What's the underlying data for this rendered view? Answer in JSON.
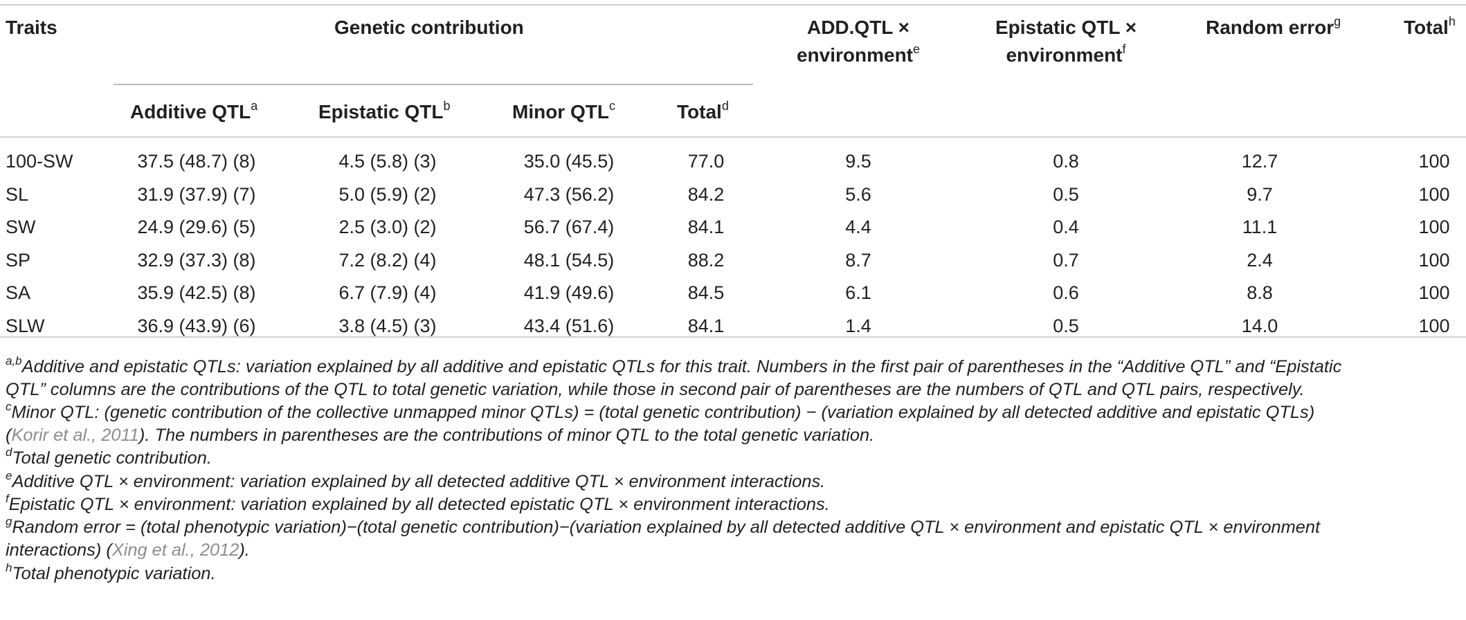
{
  "table": {
    "header": {
      "traits": "Traits",
      "genetic_contribution": "Genetic contribution",
      "additive_qtl": "Additive QTL",
      "additive_qtl_mark": "a",
      "epistatic_qtl": "Epistatic QTL",
      "epistatic_qtl_mark": "b",
      "minor_qtl": "Minor QTL",
      "minor_qtl_mark": "c",
      "total_gc": "Total",
      "total_gc_mark": "d",
      "add_env_line1": "ADD.QTL ×",
      "add_env_line2": "environment",
      "add_env_mark": "e",
      "epi_env_line1": "Epistatic QTL ×",
      "epi_env_line2": "environment",
      "epi_env_mark": "f",
      "random_error": "Random error",
      "random_error_mark": "g",
      "total": "Total",
      "total_mark": "h"
    },
    "rows": [
      {
        "trait": "100-SW",
        "additive": "37.5 (48.7) (8)",
        "epistatic": "4.5 (5.8) (3)",
        "minor": "35.0 (45.5)",
        "total_gc": "77.0",
        "add_env": "9.5",
        "epi_env": "0.8",
        "random_error": "12.7",
        "total": "100"
      },
      {
        "trait": "SL",
        "additive": "31.9 (37.9) (7)",
        "epistatic": "5.0 (5.9) (2)",
        "minor": "47.3 (56.2)",
        "total_gc": "84.2",
        "add_env": "5.6",
        "epi_env": "0.5",
        "random_error": "9.7",
        "total": "100"
      },
      {
        "trait": "SW",
        "additive": "24.9 (29.6) (5)",
        "epistatic": "2.5 (3.0) (2)",
        "minor": "56.7 (67.4)",
        "total_gc": "84.1",
        "add_env": "4.4",
        "epi_env": "0.4",
        "random_error": "11.1",
        "total": "100"
      },
      {
        "trait": "SP",
        "additive": "32.9 (37.3) (8)",
        "epistatic": "7.2 (8.2) (4)",
        "minor": "48.1 (54.5)",
        "total_gc": "88.2",
        "add_env": "8.7",
        "epi_env": "0.7",
        "random_error": "2.4",
        "total": "100"
      },
      {
        "trait": "SA",
        "additive": "35.9 (42.5) (8)",
        "epistatic": "6.7 (7.9) (4)",
        "minor": "41.9 (49.6)",
        "total_gc": "84.5",
        "add_env": "6.1",
        "epi_env": "0.6",
        "random_error": "8.8",
        "total": "100"
      },
      {
        "trait": "SLW",
        "additive": "36.9 (43.9) (6)",
        "epistatic": "3.8 (4.5) (3)",
        "minor": "43.4 (51.6)",
        "total_gc": "84.1",
        "add_env": "1.4",
        "epi_env": "0.5",
        "random_error": "14.0",
        "total": "100"
      }
    ]
  },
  "footnotes": {
    "ab_mark": "a,b",
    "ab_line1": "Additive and epistatic QTLs: variation explained by all additive and epistatic QTLs for this trait. Numbers in the first pair of parentheses in the “Additive QTL” and “Epistatic",
    "ab_line2": "QTL” columns are the contributions of the QTL to total genetic variation, while those in second pair of parentheses are the numbers of QTL and QTL pairs, respectively.",
    "c_mark": "c",
    "c_line1": "Minor QTL: (genetic contribution of the collective unmapped minor QTLs) = (total genetic contribution) − (variation explained by all detected additive and epistatic QTLs)",
    "c_line2_open": "(",
    "c_line2_ref": "Korir et al., 2011",
    "c_line2_rest": "). The numbers in parentheses are the contributions of minor QTL to the total genetic variation.",
    "d_mark": "d",
    "d_text": "Total genetic contribution.",
    "e_mark": "e",
    "e_text": "Additive QTL × environment: variation explained by all detected additive QTL × environment interactions.",
    "f_mark": "f",
    "f_text": "Epistatic QTL × environment: variation explained by all detected epistatic QTL × environment interactions.",
    "g_mark": "g",
    "g_line1": "Random error = (total phenotypic variation)−(total genetic contribution)−(variation explained by all detected additive QTL × environment and epistatic QTL × environment",
    "g_line2_start": "interactions) (",
    "g_line2_ref": "Xing et al., 2012",
    "g_line2_end": ").",
    "h_mark": "h",
    "h_text": "Total phenotypic variation."
  }
}
